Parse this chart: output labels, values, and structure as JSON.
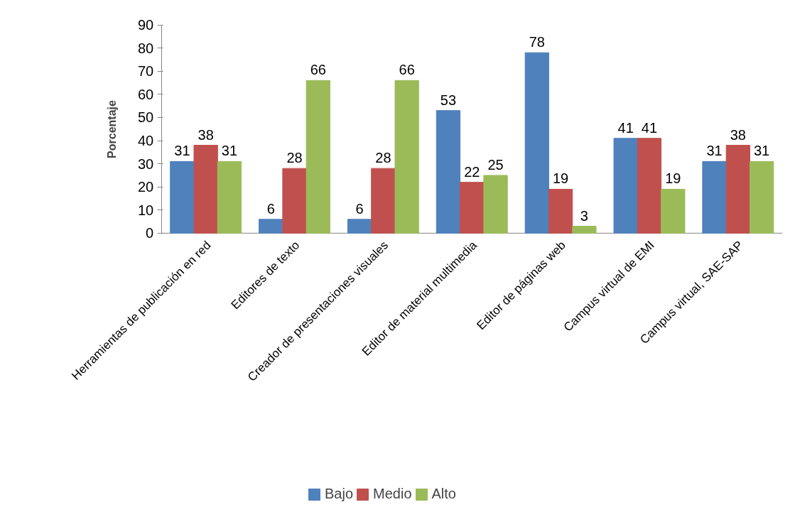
{
  "chart_data": {
    "type": "bar",
    "ylabel": "Porcentaje",
    "categories": [
      "Herramientas de publicación en red",
      "Editores de texto",
      "Creador de presentaciones visuales",
      "Editor de material multimedia",
      "Editor de páginas web",
      "Campus virtual de EMI",
      "Campus virtual, SAE-SAP"
    ],
    "series": [
      {
        "name": "Bajo",
        "color": "#4f81bd",
        "values": [
          31,
          6,
          6,
          53,
          78,
          41,
          31
        ]
      },
      {
        "name": "Medio",
        "color": "#c0504d",
        "values": [
          38,
          28,
          28,
          22,
          19,
          41,
          38
        ]
      },
      {
        "name": "Alto",
        "color": "#9bbb59",
        "values": [
          31,
          66,
          66,
          25,
          3,
          19,
          31
        ]
      }
    ],
    "ylim": [
      0,
      90
    ],
    "yticks": [
      0,
      10,
      20,
      30,
      40,
      50,
      60,
      70,
      80,
      90
    ],
    "grid": false,
    "legend": "bottom",
    "data_labels": true
  }
}
